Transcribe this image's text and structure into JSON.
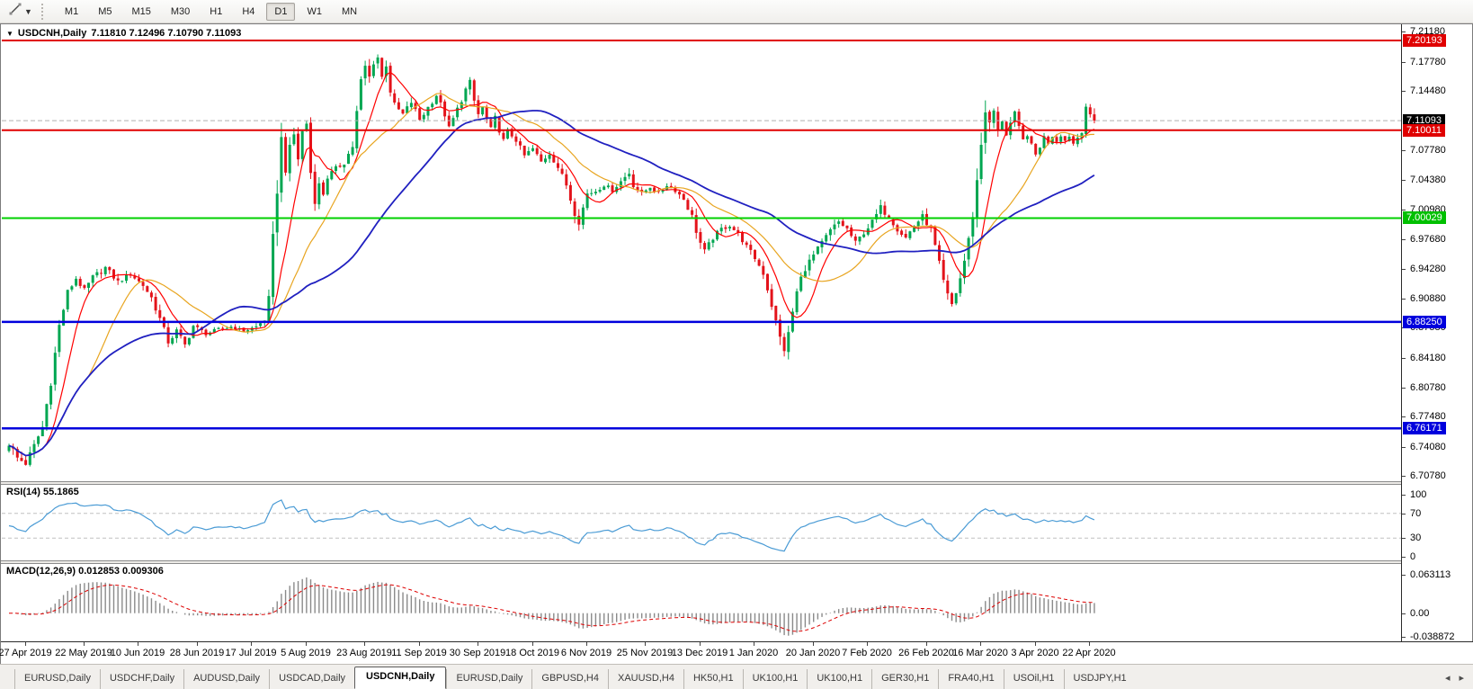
{
  "toolbar": {
    "tool_icon": "crosshair-tool",
    "timeframes": [
      "M1",
      "M5",
      "M15",
      "M30",
      "H1",
      "H4",
      "D1",
      "W1",
      "MN"
    ],
    "active_timeframe": "D1"
  },
  "chart": {
    "symbol_label": "USDCNH,Daily",
    "ohlc_label": "7.11810 7.12496 7.10790 7.11093",
    "dropdown_glyph": "▼"
  },
  "indicators": {
    "rsi_label": "RSI(14) 55.1865",
    "macd_label": "MACD(12,26,9) 0.012853 0.009306",
    "rsi_ticks": [
      {
        "value": 100,
        "label": "100"
      },
      {
        "value": 70,
        "label": "70"
      },
      {
        "value": 30,
        "label": "30"
      },
      {
        "value": 0,
        "label": "0"
      }
    ],
    "macd_ticks": [
      {
        "value": 0.063113,
        "label": "0.063113"
      },
      {
        "value": 0.0,
        "label": "0.00"
      },
      {
        "value": -0.038872,
        "label": "-0.038872"
      }
    ]
  },
  "price_axis": {
    "ticks": [
      "7.21180",
      "7.17780",
      "7.14480",
      "7.07780",
      "7.04380",
      "7.00980",
      "6.97680",
      "6.94280",
      "6.90880",
      "6.87580",
      "6.84180",
      "6.80780",
      "6.77480",
      "6.74080",
      "6.70780"
    ],
    "badges": [
      {
        "label": "7.20193",
        "bg": "#e00000",
        "fg": "#ffffff"
      },
      {
        "label": "7.11093",
        "bg": "#000000",
        "fg": "#ffffff"
      },
      {
        "label": "7.10011",
        "bg": "#e00000",
        "fg": "#ffffff"
      },
      {
        "label": "7.00029",
        "bg": "#00c000",
        "fg": "#ffffff"
      },
      {
        "label": "6.88250",
        "bg": "#0000dd",
        "fg": "#ffffff"
      },
      {
        "label": "6.76171",
        "bg": "#0000dd",
        "fg": "#ffffff"
      }
    ]
  },
  "hlines": [
    {
      "price": 7.20193,
      "color": "#e00000",
      "width": 2
    },
    {
      "price": 7.10011,
      "color": "#e00000",
      "width": 2
    },
    {
      "price": 7.00029,
      "color": "#00d000",
      "width": 2
    },
    {
      "price": 6.8825,
      "color": "#0000dd",
      "width": 2.5
    },
    {
      "price": 6.76171,
      "color": "#0000dd",
      "width": 2.5
    }
  ],
  "bid_line": {
    "price": 7.11093,
    "color": "#b0b0b0"
  },
  "tabs": {
    "items": [
      {
        "label": "EURUSD,Daily",
        "active": false
      },
      {
        "label": "USDCHF,Daily",
        "active": false
      },
      {
        "label": "AUDUSD,Daily",
        "active": false
      },
      {
        "label": "USDCAD,Daily",
        "active": false
      },
      {
        "label": "USDCNH,Daily",
        "active": true
      },
      {
        "label": "EURUSD,Daily",
        "active": false
      },
      {
        "label": "GBPUSD,H4",
        "active": false
      },
      {
        "label": "XAUUSD,H4",
        "active": false
      },
      {
        "label": "HK50,H1",
        "active": false
      },
      {
        "label": "UK100,H1",
        "active": false
      },
      {
        "label": "UK100,H1",
        "active": false
      },
      {
        "label": "GER30,H1",
        "active": false
      },
      {
        "label": "FRA40,H1",
        "active": false
      },
      {
        "label": "USOil,H1",
        "active": false
      },
      {
        "label": "USDJPY,H1",
        "active": false
      }
    ],
    "scroll_left_glyph": "◂",
    "scroll_right_glyph": "▸"
  },
  "chart_data": {
    "type": "candlestick",
    "symbol": "USDCNH",
    "timeframe": "Daily",
    "bars": 260,
    "price_top": 7.21826,
    "price_bottom": 6.70166,
    "last_bar": {
      "open": 7.1181,
      "high": 7.12496,
      "low": 7.1079,
      "close": 7.11093
    },
    "up_color": "#00a651",
    "down_color": "#e3131b",
    "moving_averages": [
      {
        "period": 8,
        "color": "#ff0000",
        "width": 1.2
      },
      {
        "period": 20,
        "color": "#e8a520",
        "width": 1.2
      },
      {
        "period": 45,
        "color": "#2020c0",
        "width": 1.8
      }
    ],
    "rsi": {
      "period": 14,
      "current": 55.1865,
      "levels": [
        70,
        30
      ],
      "color": "#4a9bd5",
      "range": [
        0,
        100
      ]
    },
    "macd": {
      "fast": 12,
      "slow": 26,
      "signal": 9,
      "current": [
        0.012853,
        0.009306
      ],
      "hist_color": "#8a8a8a",
      "signal_color": "#dd0000"
    },
    "date_labels": [
      {
        "i": 4,
        "t": "27 Apr 2019"
      },
      {
        "i": 18,
        "t": "22 May 2019"
      },
      {
        "i": 31,
        "t": "10 Jun 2019"
      },
      {
        "i": 45,
        "t": "28 Jun 2019"
      },
      {
        "i": 58,
        "t": "17 Jul 2019"
      },
      {
        "i": 71,
        "t": "5 Aug 2019"
      },
      {
        "i": 85,
        "t": "23 Aug 2019"
      },
      {
        "i": 98,
        "t": "11 Sep 2019"
      },
      {
        "i": 112,
        "t": "30 Sep 2019"
      },
      {
        "i": 125,
        "t": "18 Oct 2019"
      },
      {
        "i": 138,
        "t": "6 Nov 2019"
      },
      {
        "i": 152,
        "t": "25 Nov 2019"
      },
      {
        "i": 165,
        "t": "13 Dec 2019"
      },
      {
        "i": 178,
        "t": "1 Jan 2020"
      },
      {
        "i": 192,
        "t": "20 Jan 2020"
      },
      {
        "i": 205,
        "t": "7 Feb 2020"
      },
      {
        "i": 219,
        "t": "26 Feb 2020"
      },
      {
        "i": 232,
        "t": "16 Mar 2020"
      },
      {
        "i": 245,
        "t": "3 Apr 2020"
      },
      {
        "i": 258,
        "t": "22 Apr 2020"
      }
    ],
    "close_path_anchors": [
      [
        0,
        6.745,
        0.012
      ],
      [
        2,
        6.728,
        0.011
      ],
      [
        4,
        6.722,
        0.01
      ],
      [
        6,
        6.742,
        0.009
      ],
      [
        8,
        6.763,
        0.011
      ],
      [
        10,
        6.815,
        0.013
      ],
      [
        12,
        6.878,
        0.012
      ],
      [
        14,
        6.916,
        0.01
      ],
      [
        16,
        6.932,
        0.008
      ],
      [
        18,
        6.918,
        0.008
      ],
      [
        20,
        6.933,
        0.008
      ],
      [
        23,
        6.944,
        0.008
      ],
      [
        26,
        6.928,
        0.007
      ],
      [
        29,
        6.937,
        0.007
      ],
      [
        32,
        6.924,
        0.007
      ],
      [
        34,
        6.91,
        0.008
      ],
      [
        36,
        6.886,
        0.009
      ],
      [
        38,
        6.86,
        0.01
      ],
      [
        40,
        6.872,
        0.009
      ],
      [
        42,
        6.856,
        0.009
      ],
      [
        44,
        6.878,
        0.007
      ],
      [
        47,
        6.869,
        0.005
      ],
      [
        50,
        6.874,
        0.005
      ],
      [
        53,
        6.877,
        0.005
      ],
      [
        56,
        6.872,
        0.005
      ],
      [
        59,
        6.877,
        0.005
      ],
      [
        61,
        6.885,
        0.006
      ],
      [
        62,
        6.908,
        0.011
      ],
      [
        63,
        6.975,
        0.02
      ],
      [
        64,
        7.035,
        0.024
      ],
      [
        65,
        7.088,
        0.027
      ],
      [
        66,
        7.058,
        0.018
      ],
      [
        67,
        7.078,
        0.014
      ],
      [
        68,
        7.095,
        0.013
      ],
      [
        69,
        7.068,
        0.012
      ],
      [
        70,
        7.098,
        0.012
      ],
      [
        71,
        7.108,
        0.013
      ],
      [
        72,
        7.052,
        0.016
      ],
      [
        73,
        7.022,
        0.014
      ],
      [
        74,
        7.038,
        0.01
      ],
      [
        75,
        7.028,
        0.009
      ],
      [
        76,
        7.047,
        0.009
      ],
      [
        78,
        7.056,
        0.008
      ],
      [
        80,
        7.064,
        0.009
      ],
      [
        82,
        7.082,
        0.011
      ],
      [
        83,
        7.12,
        0.013
      ],
      [
        84,
        7.155,
        0.014
      ],
      [
        85,
        7.172,
        0.013
      ],
      [
        86,
        7.16,
        0.011
      ],
      [
        87,
        7.178,
        0.011
      ],
      [
        88,
        7.183,
        0.01
      ],
      [
        89,
        7.16,
        0.01
      ],
      [
        90,
        7.175,
        0.01
      ],
      [
        91,
        7.145,
        0.012
      ],
      [
        92,
        7.128,
        0.01
      ],
      [
        94,
        7.118,
        0.008
      ],
      [
        96,
        7.132,
        0.008
      ],
      [
        98,
        7.112,
        0.008
      ],
      [
        100,
        7.126,
        0.008
      ],
      [
        102,
        7.14,
        0.008
      ],
      [
        104,
        7.118,
        0.009
      ],
      [
        105,
        7.102,
        0.008
      ],
      [
        107,
        7.124,
        0.008
      ],
      [
        109,
        7.146,
        0.01
      ],
      [
        110,
        7.154,
        0.009
      ],
      [
        111,
        7.133,
        0.009
      ],
      [
        112,
        7.118,
        0.008
      ],
      [
        113,
        7.126,
        0.007
      ],
      [
        114,
        7.112,
        0.007
      ],
      [
        115,
        7.101,
        0.007
      ],
      [
        116,
        7.114,
        0.007
      ],
      [
        117,
        7.1,
        0.007
      ],
      [
        118,
        7.088,
        0.008
      ],
      [
        119,
        7.099,
        0.007
      ],
      [
        121,
        7.089,
        0.007
      ],
      [
        123,
        7.071,
        0.007
      ],
      [
        125,
        7.079,
        0.007
      ],
      [
        127,
        7.064,
        0.007
      ],
      [
        129,
        7.074,
        0.007
      ],
      [
        131,
        7.058,
        0.008
      ],
      [
        133,
        7.038,
        0.009
      ],
      [
        134,
        7.022,
        0.01
      ],
      [
        135,
        7.008,
        0.013
      ],
      [
        136,
        6.998,
        0.013
      ],
      [
        137,
        7.012,
        0.009
      ],
      [
        138,
        7.028,
        0.008
      ],
      [
        140,
        7.031,
        0.006
      ],
      [
        142,
        7.038,
        0.006
      ],
      [
        144,
        7.032,
        0.006
      ],
      [
        146,
        7.042,
        0.006
      ],
      [
        148,
        7.052,
        0.011
      ],
      [
        149,
        7.038,
        0.008
      ],
      [
        151,
        7.028,
        0.006
      ],
      [
        153,
        7.036,
        0.006
      ],
      [
        155,
        7.028,
        0.006
      ],
      [
        157,
        7.038,
        0.006
      ],
      [
        159,
        7.032,
        0.006
      ],
      [
        161,
        7.022,
        0.007
      ],
      [
        163,
        7.002,
        0.009
      ],
      [
        164,
        6.986,
        0.01
      ],
      [
        165,
        6.972,
        0.01
      ],
      [
        166,
        6.962,
        0.009
      ],
      [
        168,
        6.978,
        0.008
      ],
      [
        170,
        6.988,
        0.007
      ],
      [
        172,
        6.992,
        0.006
      ],
      [
        174,
        6.982,
        0.006
      ],
      [
        176,
        6.968,
        0.007
      ],
      [
        178,
        6.955,
        0.008
      ],
      [
        180,
        6.938,
        0.009
      ],
      [
        181,
        6.92,
        0.01
      ],
      [
        182,
        6.902,
        0.012
      ],
      [
        183,
        6.882,
        0.012
      ],
      [
        184,
        6.864,
        0.013
      ],
      [
        185,
        6.852,
        0.013
      ],
      [
        186,
        6.868,
        0.013
      ],
      [
        187,
        6.894,
        0.014
      ],
      [
        188,
        6.916,
        0.012
      ],
      [
        189,
        6.932,
        0.01
      ],
      [
        190,
        6.944,
        0.01
      ],
      [
        192,
        6.958,
        0.009
      ],
      [
        194,
        6.972,
        0.009
      ],
      [
        196,
        6.986,
        0.009
      ],
      [
        198,
        6.996,
        0.008
      ],
      [
        200,
        6.988,
        0.007
      ],
      [
        202,
        6.972,
        0.008
      ],
      [
        204,
        6.984,
        0.007
      ],
      [
        206,
        6.996,
        0.008
      ],
      [
        208,
        7.012,
        0.009
      ],
      [
        210,
        7.002,
        0.008
      ],
      [
        212,
        6.988,
        0.008
      ],
      [
        214,
        6.978,
        0.008
      ],
      [
        216,
        6.992,
        0.008
      ],
      [
        218,
        7.002,
        0.008
      ],
      [
        220,
        6.988,
        0.009
      ],
      [
        221,
        6.968,
        0.009
      ],
      [
        222,
        6.948,
        0.01
      ],
      [
        223,
        6.928,
        0.01
      ],
      [
        224,
        6.912,
        0.01
      ],
      [
        225,
        6.902,
        0.011
      ],
      [
        226,
        6.916,
        0.011
      ],
      [
        227,
        6.932,
        0.011
      ],
      [
        228,
        6.952,
        0.012
      ],
      [
        229,
        6.975,
        0.014
      ],
      [
        230,
        7.005,
        0.016
      ],
      [
        231,
        7.042,
        0.018
      ],
      [
        232,
        7.085,
        0.02
      ],
      [
        233,
        7.125,
        0.021
      ],
      [
        234,
        7.105,
        0.016
      ],
      [
        235,
        7.122,
        0.012
      ],
      [
        236,
        7.098,
        0.012
      ],
      [
        237,
        7.112,
        0.01
      ],
      [
        238,
        7.096,
        0.01
      ],
      [
        239,
        7.108,
        0.009
      ],
      [
        240,
        7.118,
        0.009
      ],
      [
        241,
        7.102,
        0.009
      ],
      [
        242,
        7.088,
        0.009
      ],
      [
        243,
        7.096,
        0.008
      ],
      [
        244,
        7.082,
        0.008
      ],
      [
        245,
        7.072,
        0.008
      ],
      [
        246,
        7.082,
        0.007
      ],
      [
        247,
        7.092,
        0.007
      ],
      [
        248,
        7.086,
        0.006
      ],
      [
        249,
        7.094,
        0.006
      ],
      [
        250,
        7.088,
        0.006
      ],
      [
        251,
        7.095,
        0.006
      ],
      [
        252,
        7.088,
        0.006
      ],
      [
        253,
        7.094,
        0.006
      ],
      [
        254,
        7.085,
        0.006
      ],
      [
        255,
        7.092,
        0.006
      ],
      [
        256,
        7.1,
        0.008
      ],
      [
        257,
        7.128,
        0.011
      ],
      [
        258,
        7.118,
        0.006
      ],
      [
        259,
        7.11093,
        0.006
      ]
    ]
  }
}
